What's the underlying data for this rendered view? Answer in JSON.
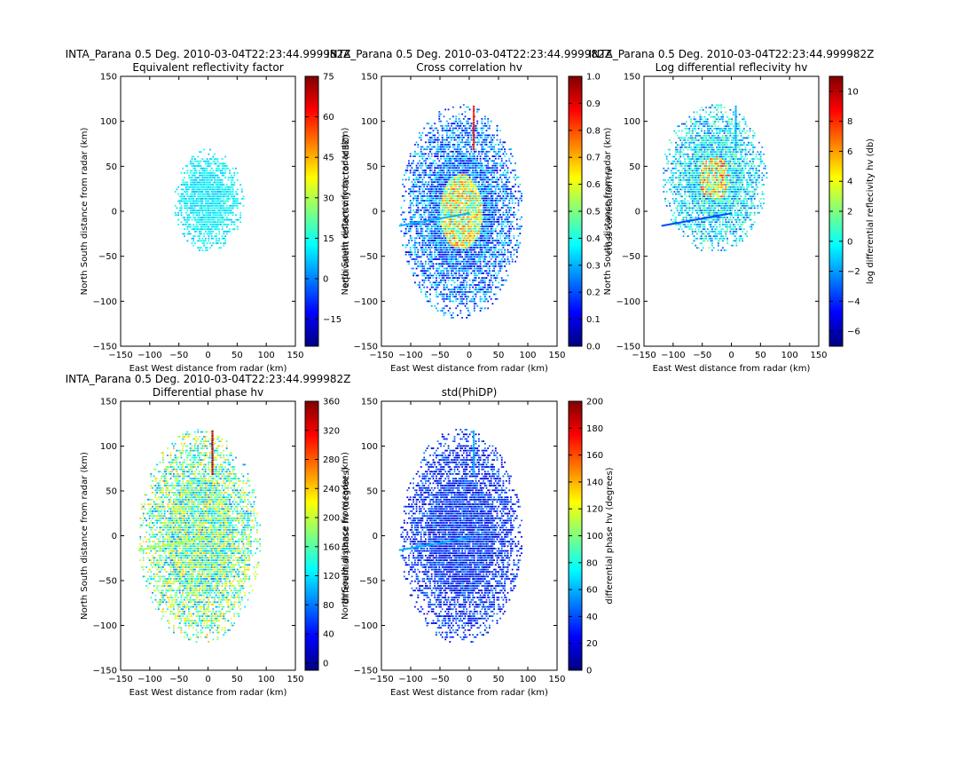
{
  "figure": {
    "common": {
      "xlabel": "East West distance from radar (km)",
      "ylabel": "North South distance from radar (km)",
      "xlim": [
        -150,
        150
      ],
      "ylim": [
        -150,
        150
      ],
      "xticks": [
        "−150",
        "−100",
        "−50",
        "0",
        "50",
        "100",
        "150"
      ],
      "yticks": [
        "150",
        "100",
        "50",
        "0",
        "−50",
        "−100",
        "−150"
      ],
      "colormap": "jet",
      "colormap_stops": [
        "#00007f",
        "#0000ff",
        "#007fff",
        "#00ffff",
        "#7fff7f",
        "#ffff00",
        "#ff7f00",
        "#ff0000",
        "#7f0000"
      ]
    }
  },
  "chart_data": [
    {
      "type": "heatmap",
      "title": "INTA_Parana 0.5 Deg. 2010-03-04T22:23:44.999982Z",
      "subtitle": "Equivalent reflectivity factor",
      "xlabel": "East West distance from radar (km)",
      "ylabel": "North South distance from radar (km)",
      "xlim": [
        -150,
        150
      ],
      "ylim": [
        -150,
        150
      ],
      "colorbar": {
        "label": "equivalent reflectivity factor (dBZ)",
        "range": [
          -25,
          75
        ],
        "ticks": [
          "75",
          "60",
          "45",
          "30",
          "15",
          "0",
          "−15"
        ]
      },
      "echo_extent": {
        "x": [
          -60,
          60
        ],
        "y": [
          -45,
          70
        ]
      }
    },
    {
      "type": "heatmap",
      "title": "INTA_Parana 0.5 Deg. 2010-03-04T22:23:44.999982Z",
      "subtitle": "Cross correlation hv",
      "xlabel": "East West distance from radar (km)",
      "ylabel": "North South distance from radar (km)",
      "xlim": [
        -150,
        150
      ],
      "ylim": [
        -150,
        150
      ],
      "colorbar": {
        "label": "cross correlation hv",
        "range": [
          0,
          1
        ],
        "ticks": [
          "1.0",
          "0.9",
          "0.8",
          "0.7",
          "0.6",
          "0.5",
          "0.4",
          "0.3",
          "0.2",
          "0.1",
          "0.0"
        ]
      },
      "echo_extent": {
        "x": [
          -120,
          90
        ],
        "y": [
          -120,
          120
        ]
      }
    },
    {
      "type": "heatmap",
      "title": "INTA_Parana 0.5 Deg. 2010-03-04T22:23:44.999982Z",
      "subtitle": "Log differential reflecivity hv",
      "xlabel": "East West distance from radar (km)",
      "ylabel": "North South distance from radar (km)",
      "xlim": [
        -150,
        150
      ],
      "ylim": [
        -150,
        150
      ],
      "colorbar": {
        "label": "log differential reflecivity hv (db)",
        "range": [
          -7,
          11
        ],
        "ticks": [
          "10",
          "8",
          "6",
          "4",
          "2",
          "0",
          "−2",
          "−4",
          "−6"
        ]
      },
      "echo_extent": {
        "x": [
          -120,
          60
        ],
        "y": [
          -45,
          120
        ]
      }
    },
    {
      "type": "heatmap",
      "title": "INTA_Parana 0.5 Deg. 2010-03-04T22:23:44.999982Z",
      "subtitle": "Differential phase hv",
      "xlabel": "East West distance from radar (km)",
      "ylabel": "North South distance from radar (km)",
      "xlim": [
        -150,
        150
      ],
      "ylim": [
        -150,
        150
      ],
      "colorbar": {
        "label": "differential phase hv (degrees)",
        "range": [
          -10,
          360
        ],
        "ticks": [
          "360",
          "320",
          "280",
          "240",
          "200",
          "160",
          "120",
          "80",
          "40",
          "0"
        ]
      },
      "echo_extent": {
        "x": [
          -120,
          90
        ],
        "y": [
          -120,
          120
        ]
      }
    },
    {
      "type": "heatmap",
      "title": "",
      "subtitle": "std(PhiDP)",
      "xlabel": "East West distance from radar (km)",
      "ylabel": "North South distance from radar (km)",
      "xlim": [
        -150,
        150
      ],
      "ylim": [
        -150,
        150
      ],
      "colorbar": {
        "label": "differential phase hv (degrees)",
        "range": [
          0,
          200
        ],
        "ticks": [
          "200",
          "180",
          "160",
          "140",
          "120",
          "100",
          "80",
          "60",
          "40",
          "20",
          "0"
        ]
      },
      "echo_extent": {
        "x": [
          -120,
          90
        ],
        "y": [
          -120,
          120
        ]
      }
    }
  ]
}
